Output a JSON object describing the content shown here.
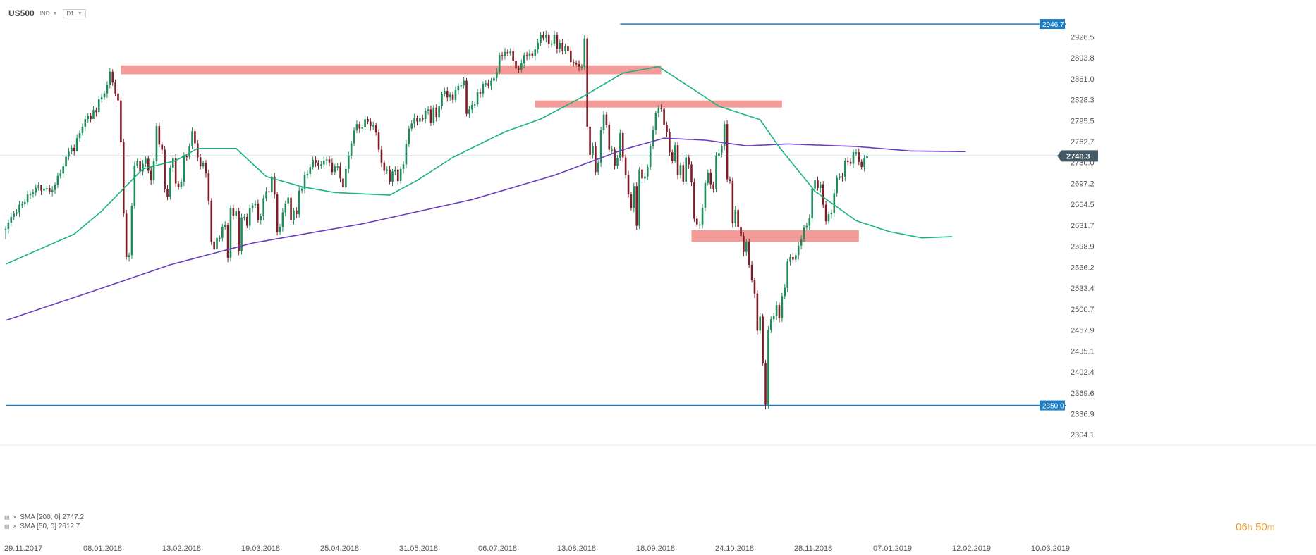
{
  "header": {
    "symbol": "US500",
    "market": "IND",
    "timeframe": "D1"
  },
  "legend": [
    {
      "text": "SMA [200, 0] 2747.2",
      "color": "#6a3cc0"
    },
    {
      "text": "SMA [50, 0] 2612.7",
      "color": "#19b37f"
    }
  ],
  "countdown": {
    "hours": "06",
    "h_unit": "h",
    "minutes": "50",
    "m_unit": "m"
  },
  "colors": {
    "up": "#1f8a5a",
    "down": "#7e1d25",
    "sma200": "#6a3cc0",
    "sma50": "#19b37f",
    "zone": "#f08a86",
    "hline": "#1f7bc0",
    "price_line": "#37474f",
    "text": "#555555"
  },
  "chart_data": {
    "type": "candlestick",
    "symbol": "US500",
    "timeframe": "D1",
    "ylim": [
      2290,
      2960
    ],
    "y_ticks": [
      "2926.5",
      "2893.8",
      "2861.0",
      "2828.3",
      "2795.5",
      "2762.7",
      "2730.0",
      "2697.2",
      "2664.5",
      "2631.7",
      "2598.9",
      "2566.2",
      "2533.4",
      "2500.7",
      "2467.9",
      "2435.1",
      "2402.4",
      "2369.6",
      "2336.9",
      "2304.1"
    ],
    "x_ticks": [
      "29.11.2017",
      "08.01.2018",
      "13.02.2018",
      "19.03.2018",
      "25.04.2018",
      "31.05.2018",
      "06.07.2018",
      "13.08.2018",
      "18.09.2018",
      "24.10.2018",
      "28.11.2018",
      "07.01.2019",
      "12.02.2019",
      "10.03.2019"
    ],
    "candles": {
      "start_date": "29.11.2017",
      "close": [
        2626,
        2636,
        2645,
        2650,
        2652,
        2664,
        2665,
        2668,
        2680,
        2681,
        2683,
        2690,
        2695,
        2686,
        2689,
        2690,
        2684,
        2687,
        2695,
        2709,
        2713,
        2724,
        2739,
        2747,
        2753,
        2748,
        2768,
        2776,
        2786,
        2798,
        2803,
        2798,
        2812,
        2809,
        2829,
        2832,
        2838,
        2852,
        2872,
        2855,
        2838,
        2827,
        2762,
        2650,
        2582,
        2585,
        2662,
        2725,
        2732,
        2716,
        2728,
        2736,
        2717,
        2702,
        2732,
        2787,
        2758,
        2750,
        2689,
        2676,
        2722,
        2737,
        2697,
        2692,
        2700,
        2740,
        2739,
        2755,
        2779,
        2760,
        2738,
        2724,
        2729,
        2713,
        2670,
        2606,
        2594,
        2612,
        2612,
        2629,
        2632,
        2581,
        2658,
        2646,
        2654,
        2592,
        2644,
        2645,
        2631,
        2658,
        2663,
        2666,
        2640,
        2646,
        2674,
        2685,
        2684,
        2708,
        2680,
        2621,
        2629,
        2652,
        2666,
        2675,
        2640,
        2655,
        2649,
        2686,
        2689,
        2711,
        2712,
        2723,
        2734,
        2730,
        2725,
        2727,
        2733,
        2735,
        2730,
        2715,
        2724,
        2724,
        2705,
        2691,
        2720,
        2741,
        2760,
        2780,
        2790,
        2783,
        2785,
        2798,
        2794,
        2787,
        2788,
        2777,
        2750,
        2730,
        2717,
        2719,
        2700,
        2716,
        2719,
        2701,
        2720,
        2727,
        2759,
        2783,
        2791,
        2800,
        2794,
        2799,
        2798,
        2811,
        2813,
        2792,
        2816,
        2801,
        2818,
        2837,
        2842,
        2832,
        2836,
        2828,
        2843,
        2850,
        2851,
        2858,
        2806,
        2813,
        2820,
        2821,
        2840,
        2838,
        2853,
        2854,
        2850,
        2858,
        2862,
        2872,
        2898,
        2897,
        2903,
        2901,
        2904,
        2889,
        2877,
        2875,
        2885,
        2898,
        2896,
        2901,
        2897,
        2907,
        2917,
        2930,
        2925,
        2930,
        2915,
        2916,
        2930,
        2908,
        2917,
        2904,
        2912,
        2905,
        2887,
        2885,
        2884,
        2880,
        2880,
        2924,
        2786,
        2742,
        2756,
        2715,
        2730,
        2781,
        2805,
        2789,
        2750,
        2750,
        2725,
        2737,
        2776,
        2738,
        2711,
        2680,
        2659,
        2693,
        2631,
        2719,
        2705,
        2708,
        2723,
        2755,
        2781,
        2807,
        2815,
        2814,
        2789,
        2777,
        2746,
        2733,
        2757,
        2711,
        2726,
        2700,
        2738,
        2727,
        2699,
        2642,
        2633,
        2633,
        2659,
        2698,
        2714,
        2696,
        2689,
        2741,
        2745,
        2755,
        2790,
        2704,
        2701,
        2635,
        2656,
        2629,
        2615,
        2590,
        2606,
        2570,
        2546,
        2525,
        2467,
        2489,
        2416,
        2351,
        2468,
        2485,
        2490,
        2507,
        2486,
        2521,
        2534,
        2575,
        2582,
        2578,
        2585,
        2600,
        2610,
        2628,
        2631,
        2643,
        2689,
        2702,
        2690,
        2696,
        2664,
        2638,
        2649,
        2651,
        2682,
        2706,
        2708,
        2707,
        2733,
        2731,
        2728,
        2746,
        2746,
        2731,
        2723,
        2737,
        2740
      ],
      "body_tops": [
        2626,
        2636,
        2645,
        2650,
        2652,
        2664,
        2665,
        2668,
        2680,
        2681,
        2683,
        2690,
        2695,
        2690,
        2690,
        2690,
        2690,
        2687,
        2695,
        2709,
        2713,
        2724,
        2739,
        2747,
        2753,
        2753,
        2768,
        2776,
        2786,
        2798,
        2803,
        2803,
        2812,
        2812,
        2829,
        2832,
        2838,
        2852,
        2872,
        2872,
        2855,
        2838,
        2827,
        2762,
        2650,
        2585,
        2662,
        2725,
        2732,
        2732,
        2728,
        2736,
        2736,
        2717,
        2732,
        2787,
        2787,
        2758,
        2750,
        2689,
        2722,
        2737,
        2737,
        2697,
        2700,
        2740,
        2740,
        2755,
        2779,
        2779,
        2760,
        2738,
        2729,
        2729,
        2713,
        2670,
        2606,
        2612,
        2612,
        2629,
        2632,
        2632,
        2658,
        2658,
        2654,
        2654,
        2644,
        2645,
        2645,
        2658,
        2663,
        2666,
        2666,
        2646,
        2674,
        2685,
        2685,
        2708,
        2708,
        2680,
        2629,
        2652,
        2666,
        2675,
        2675,
        2655,
        2655,
        2686,
        2689,
        2711,
        2712,
        2723,
        2734,
        2734,
        2730,
        2727,
        2733,
        2735,
        2735,
        2730,
        2724,
        2724,
        2724,
        2705,
        2720,
        2741,
        2760,
        2780,
        2790,
        2790,
        2785,
        2798,
        2798,
        2794,
        2788,
        2788,
        2777,
        2750,
        2730,
        2719,
        2719,
        2716,
        2719,
        2719,
        2720,
        2727,
        2759,
        2783,
        2791,
        2800,
        2800,
        2799,
        2799,
        2811,
        2813,
        2813,
        2816,
        2816,
        2818,
        2837,
        2842,
        2842,
        2836,
        2836,
        2843,
        2850,
        2851,
        2858,
        2858,
        2813,
        2820,
        2821,
        2840,
        2840,
        2853,
        2854,
        2854,
        2858,
        2862,
        2872,
        2898,
        2898,
        2903,
        2903,
        2904,
        2904,
        2889,
        2877,
        2885,
        2898,
        2898,
        2901,
        2901,
        2907,
        2917,
        2930,
        2930,
        2930,
        2930,
        2916,
        2930,
        2930,
        2917,
        2917,
        2912,
        2912,
        2905,
        2887,
        2885,
        2884,
        2880,
        2924,
        2924,
        2786,
        2756,
        2756,
        2730,
        2781,
        2805,
        2805,
        2789,
        2750,
        2750,
        2737,
        2776,
        2776,
        2738,
        2711,
        2680,
        2693,
        2693,
        2719,
        2719,
        2708,
        2723,
        2755,
        2781,
        2807,
        2815,
        2815,
        2814,
        2789,
        2777,
        2746,
        2757,
        2757,
        2726,
        2726,
        2738,
        2738,
        2727,
        2699,
        2642,
        2633,
        2659,
        2698,
        2714,
        2714,
        2696,
        2741,
        2745,
        2755,
        2790,
        2790,
        2704,
        2701,
        2656,
        2656,
        2629,
        2615,
        2606,
        2606,
        2570,
        2546,
        2525,
        2489,
        2489,
        2416,
        2468,
        2485,
        2490,
        2507,
        2507,
        2521,
        2534,
        2575,
        2582,
        2582,
        2585,
        2600,
        2610,
        2628,
        2631,
        2643,
        2689,
        2702,
        2702,
        2696,
        2696,
        2664,
        2649,
        2651,
        2682,
        2706,
        2708,
        2708,
        2733,
        2733,
        2731,
        2746,
        2746,
        2746,
        2731,
        2737,
        2740
      ],
      "body_bottoms": [
        2614,
        2626,
        2636,
        2645,
        2650,
        2652,
        2664,
        2665,
        2668,
        2680,
        2681,
        2683,
        2690,
        2686,
        2689,
        2690,
        2684,
        2684,
        2687,
        2695,
        2709,
        2713,
        2724,
        2739,
        2747,
        2748,
        2753,
        2768,
        2776,
        2786,
        2798,
        2798,
        2803,
        2809,
        2812,
        2829,
        2832,
        2838,
        2852,
        2855,
        2838,
        2827,
        2762,
        2650,
        2582,
        2582,
        2585,
        2662,
        2725,
        2716,
        2716,
        2728,
        2717,
        2702,
        2702,
        2732,
        2758,
        2750,
        2689,
        2676,
        2676,
        2722,
        2697,
        2692,
        2692,
        2700,
        2739,
        2740,
        2755,
        2760,
        2738,
        2724,
        2724,
        2713,
        2670,
        2606,
        2594,
        2594,
        2612,
        2612,
        2629,
        2581,
        2581,
        2646,
        2646,
        2592,
        2592,
        2644,
        2631,
        2631,
        2658,
        2663,
        2640,
        2640,
        2646,
        2674,
        2684,
        2685,
        2680,
        2621,
        2621,
        2629,
        2652,
        2666,
        2640,
        2640,
        2649,
        2649,
        2686,
        2689,
        2711,
        2712,
        2723,
        2730,
        2725,
        2725,
        2727,
        2733,
        2730,
        2715,
        2715,
        2724,
        2705,
        2691,
        2691,
        2720,
        2741,
        2760,
        2780,
        2783,
        2783,
        2785,
        2794,
        2787,
        2787,
        2777,
        2750,
        2730,
        2717,
        2717,
        2700,
        2700,
        2716,
        2701,
        2701,
        2720,
        2727,
        2759,
        2783,
        2791,
        2794,
        2794,
        2798,
        2798,
        2811,
        2792,
        2792,
        2801,
        2801,
        2818,
        2837,
        2832,
        2832,
        2828,
        2828,
        2843,
        2850,
        2851,
        2806,
        2806,
        2813,
        2820,
        2821,
        2838,
        2838,
        2853,
        2850,
        2850,
        2858,
        2862,
        2872,
        2897,
        2897,
        2901,
        2901,
        2889,
        2877,
        2875,
        2875,
        2885,
        2896,
        2896,
        2897,
        2897,
        2907,
        2917,
        2925,
        2925,
        2915,
        2915,
        2916,
        2908,
        2908,
        2904,
        2904,
        2905,
        2887,
        2885,
        2884,
        2880,
        2880,
        2880,
        2786,
        2742,
        2742,
        2715,
        2715,
        2730,
        2781,
        2789,
        2750,
        2750,
        2725,
        2725,
        2737,
        2738,
        2711,
        2680,
        2659,
        2659,
        2631,
        2631,
        2705,
        2705,
        2708,
        2723,
        2755,
        2781,
        2807,
        2814,
        2789,
        2777,
        2746,
        2733,
        2733,
        2711,
        2711,
        2700,
        2700,
        2727,
        2699,
        2642,
        2633,
        2633,
        2633,
        2659,
        2698,
        2696,
        2689,
        2689,
        2741,
        2745,
        2755,
        2704,
        2701,
        2635,
        2635,
        2629,
        2615,
        2590,
        2590,
        2570,
        2546,
        2525,
        2467,
        2467,
        2416,
        2351,
        2351,
        2468,
        2485,
        2490,
        2486,
        2486,
        2521,
        2534,
        2575,
        2578,
        2578,
        2585,
        2600,
        2610,
        2628,
        2631,
        2643,
        2689,
        2690,
        2690,
        2664,
        2638,
        2638,
        2649,
        2651,
        2682,
        2706,
        2707,
        2707,
        2731,
        2728,
        2728,
        2746,
        2731,
        2723,
        2723,
        2737
      ]
    },
    "series": [
      {
        "name": "SMA [200, 0] 2747.2",
        "color": "#6a3cc0",
        "anchors": [
          [
            0,
            2483
          ],
          [
            30,
            2526
          ],
          [
            60,
            2570
          ],
          [
            90,
            2604
          ],
          [
            130,
            2634
          ],
          [
            170,
            2672
          ],
          [
            200,
            2710
          ],
          [
            225,
            2750
          ],
          [
            240,
            2768
          ],
          [
            255,
            2765
          ],
          [
            270,
            2756
          ],
          [
            285,
            2759
          ],
          [
            310,
            2755
          ],
          [
            330,
            2748
          ],
          [
            350,
            2747
          ]
        ]
      },
      {
        "name": "SMA [50, 0] 2612.7",
        "color": "#19b37f",
        "anchors": [
          [
            0,
            2571
          ],
          [
            25,
            2618
          ],
          [
            35,
            2654
          ],
          [
            50,
            2720
          ],
          [
            62,
            2733
          ],
          [
            70,
            2752
          ],
          [
            84,
            2752
          ],
          [
            95,
            2708
          ],
          [
            108,
            2692
          ],
          [
            120,
            2683
          ],
          [
            140,
            2679
          ],
          [
            150,
            2702
          ],
          [
            163,
            2738
          ],
          [
            182,
            2778
          ],
          [
            195,
            2798
          ],
          [
            210,
            2832
          ],
          [
            225,
            2870
          ],
          [
            238,
            2880
          ],
          [
            248,
            2852
          ],
          [
            260,
            2818
          ],
          [
            275,
            2797
          ],
          [
            282,
            2754
          ],
          [
            295,
            2685
          ],
          [
            310,
            2639
          ],
          [
            322,
            2622
          ],
          [
            334,
            2612
          ],
          [
            345,
            2614
          ]
        ]
      }
    ],
    "zones": [
      {
        "x0": 42,
        "x1": 239,
        "y0": 2868,
        "y1": 2882
      },
      {
        "x0": 193,
        "x1": 283,
        "y0": 2816,
        "y1": 2827
      },
      {
        "x0": 250,
        "x1": 311,
        "y0": 2606,
        "y1": 2624
      }
    ],
    "horizontal_lines": [
      {
        "label": "2946.7",
        "value": 2946.7,
        "x0": 224
      },
      {
        "label": "2350.0",
        "value": 2350.0,
        "x0": 0
      }
    ],
    "current_price": {
      "label": "2740.3",
      "value": 2740.3
    }
  }
}
